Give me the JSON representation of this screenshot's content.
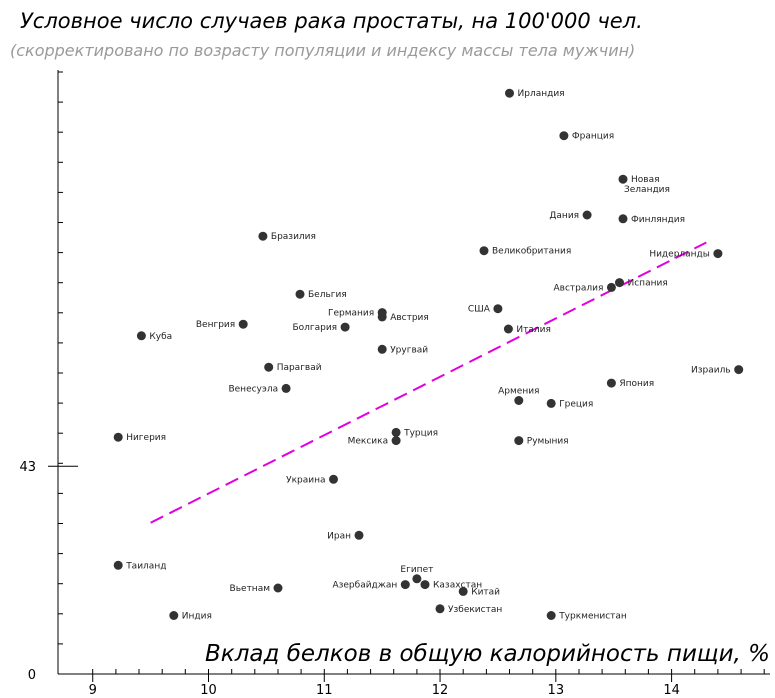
{
  "chart_data": {
    "type": "scatter",
    "title": "Условное число случаев рака простаты, на 100'000 чел.",
    "subtitle": "(скорректировано по возрасту популяции и индексу массы тела мужчин)",
    "xlabel": "Вклад белков в общую калорийность пищи, %",
    "ylabel": "",
    "xlim": [
      8.7,
      14.85
    ],
    "ylim": [
      0,
      125
    ],
    "x_ticks": [
      9,
      10,
      11,
      12,
      13,
      14
    ],
    "y_ticks": [
      0,
      43
    ],
    "trend_color": "#e000e0",
    "point_color": "#333333",
    "trendline": {
      "x": [
        9.5,
        14.3
      ],
      "y": [
        31.3,
        89.3
      ]
    },
    "points": [
      {
        "label": "Ирландия",
        "x": 12.6,
        "y": 120.2,
        "pos": "right"
      },
      {
        "label": "Франция",
        "x": 13.07,
        "y": 111.4,
        "pos": "right"
      },
      {
        "label": "Новая\nЗеландия",
        "x": 13.58,
        "y": 102.4,
        "pos": "right"
      },
      {
        "label": "Дания",
        "x": 13.27,
        "y": 95.0,
        "pos": "left"
      },
      {
        "label": "Финляндия",
        "x": 13.58,
        "y": 94.2,
        "pos": "right"
      },
      {
        "label": "Бразилия",
        "x": 10.47,
        "y": 90.6,
        "pos": "right"
      },
      {
        "label": "Великобритания",
        "x": 12.38,
        "y": 87.6,
        "pos": "right"
      },
      {
        "label": "Нидерланды",
        "x": 14.4,
        "y": 87.0,
        "pos": "left"
      },
      {
        "label": "Испания",
        "x": 13.55,
        "y": 81.0,
        "pos": "right"
      },
      {
        "label": "Австралия",
        "x": 13.48,
        "y": 80.0,
        "pos": "left"
      },
      {
        "label": "Бельгия",
        "x": 10.79,
        "y": 78.6,
        "pos": "right"
      },
      {
        "label": "США",
        "x": 12.5,
        "y": 75.6,
        "pos": "left"
      },
      {
        "label": "Германия",
        "x": 11.5,
        "y": 74.8,
        "pos": "left"
      },
      {
        "label": "Австрия",
        "x": 11.5,
        "y": 73.9,
        "pos": "right"
      },
      {
        "label": "Венгрия",
        "x": 10.3,
        "y": 72.4,
        "pos": "left"
      },
      {
        "label": "Болгария",
        "x": 11.18,
        "y": 71.8,
        "pos": "left"
      },
      {
        "label": "Италия",
        "x": 12.59,
        "y": 71.4,
        "pos": "right"
      },
      {
        "label": "Куба",
        "x": 9.42,
        "y": 70.0,
        "pos": "right"
      },
      {
        "label": "Уругвай",
        "x": 11.5,
        "y": 67.2,
        "pos": "right"
      },
      {
        "label": "Парагвай",
        "x": 10.52,
        "y": 63.5,
        "pos": "right"
      },
      {
        "label": "Израиль",
        "x": 14.58,
        "y": 63.0,
        "pos": "left"
      },
      {
        "label": "Япония",
        "x": 13.48,
        "y": 60.2,
        "pos": "right"
      },
      {
        "label": "Венесуэла",
        "x": 10.67,
        "y": 59.1,
        "pos": "left"
      },
      {
        "label": "Армения",
        "x": 12.68,
        "y": 56.6,
        "pos": "above"
      },
      {
        "label": "Греция",
        "x": 12.96,
        "y": 56.0,
        "pos": "right"
      },
      {
        "label": "Турция",
        "x": 11.62,
        "y": 50.0,
        "pos": "right"
      },
      {
        "label": "Нигерия",
        "x": 9.22,
        "y": 49.0,
        "pos": "right"
      },
      {
        "label": "Мексика",
        "x": 11.62,
        "y": 48.3,
        "pos": "left"
      },
      {
        "label": "Румыния",
        "x": 12.68,
        "y": 48.3,
        "pos": "right"
      },
      {
        "label": "Украина",
        "x": 11.08,
        "y": 40.3,
        "pos": "left"
      },
      {
        "label": "Иран",
        "x": 11.3,
        "y": 28.7,
        "pos": "left"
      },
      {
        "label": "Таиланд",
        "x": 9.22,
        "y": 22.5,
        "pos": "right"
      },
      {
        "label": "Египет",
        "x": 11.8,
        "y": 19.7,
        "pos": "above"
      },
      {
        "label": "Казахстан",
        "x": 11.87,
        "y": 18.5,
        "pos": "right"
      },
      {
        "label": "Азербайджан",
        "x": 11.7,
        "y": 18.5,
        "pos": "left"
      },
      {
        "label": "Вьетнам",
        "x": 10.6,
        "y": 17.8,
        "pos": "left"
      },
      {
        "label": "Китай",
        "x": 12.2,
        "y": 17.1,
        "pos": "right"
      },
      {
        "label": "Узбекистан",
        "x": 12.0,
        "y": 13.5,
        "pos": "right"
      },
      {
        "label": "Индия",
        "x": 9.7,
        "y": 12.1,
        "pos": "right"
      },
      {
        "label": "Туркменистан",
        "x": 12.96,
        "y": 12.1,
        "pos": "right"
      }
    ]
  }
}
